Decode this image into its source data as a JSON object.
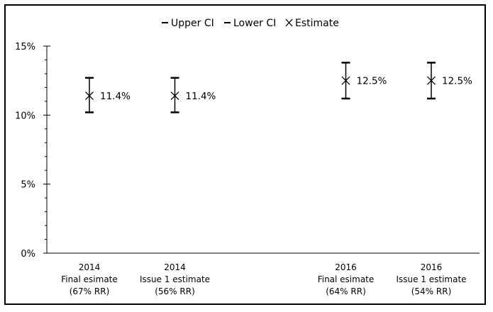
{
  "chart_data": {
    "type": "error-bar",
    "title": "",
    "xlabel": "",
    "ylabel": "",
    "ylim": [
      0,
      15
    ],
    "y_ticks": [
      "0%",
      "5%",
      "10%",
      "15%"
    ],
    "y_tick_values": [
      0,
      5,
      10,
      15
    ],
    "legend": {
      "position": "top",
      "items": [
        {
          "label": "Upper CI",
          "marker": "dash"
        },
        {
          "label": "Lower CI",
          "marker": "dash"
        },
        {
          "label": "Estimate",
          "marker": "x"
        }
      ]
    },
    "categories": [
      {
        "lines": [
          "2014",
          "Final esimate",
          "(67% RR)"
        ],
        "slot": 0
      },
      {
        "lines": [
          "2014",
          "Issue 1 estimate",
          "(56% RR)"
        ],
        "slot": 1
      },
      {
        "lines": [
          "2016",
          "Final esimate",
          "(64% RR)"
        ],
        "slot": 3
      },
      {
        "lines": [
          "2016",
          "Issue 1 estimate",
          "(54% RR)"
        ],
        "slot": 4
      }
    ],
    "series": [
      {
        "name": "Upper CI",
        "values": [
          12.7,
          12.7,
          13.8,
          13.8
        ]
      },
      {
        "name": "Lower CI",
        "values": [
          10.2,
          10.2,
          11.2,
          11.2
        ]
      },
      {
        "name": "Estimate",
        "values": [
          11.4,
          11.4,
          12.5,
          12.5
        ]
      }
    ],
    "data_labels": [
      "11.4%",
      "11.4%",
      "12.5%",
      "12.5%"
    ],
    "colors": {
      "marker": "#000000",
      "axis": "#000000"
    }
  }
}
